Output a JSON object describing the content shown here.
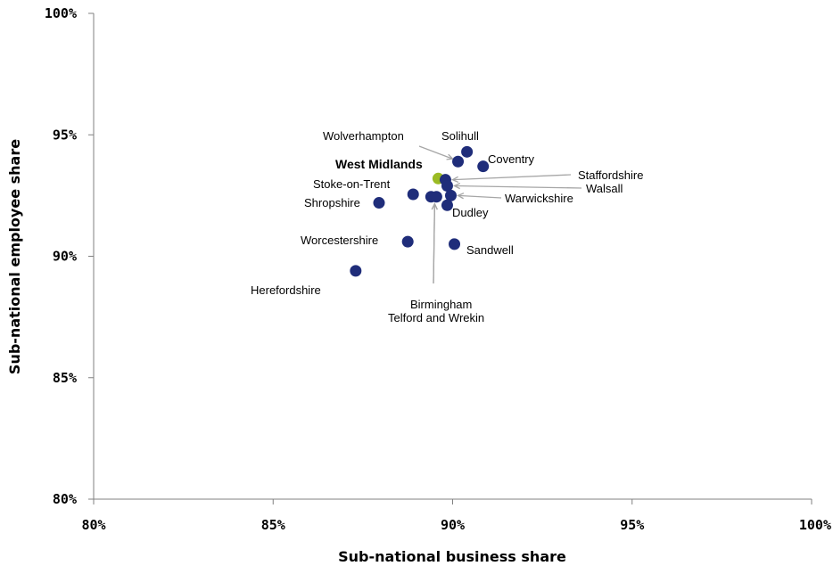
{
  "chart_data": {
    "type": "scatter",
    "title": "",
    "xlabel": "Sub-national business share",
    "ylabel": "Sub-national employee share",
    "xlim": [
      80,
      100
    ],
    "ylim": [
      80,
      100
    ],
    "x_ticks": [
      "80%",
      "85%",
      "90%",
      "95%",
      "100%"
    ],
    "y_ticks": [
      "80%",
      "85%",
      "90%",
      "95%",
      "100%"
    ],
    "grid": false,
    "colors": {
      "points": "#1f2d7a",
      "highlight": "#9bbb24",
      "arrows": "#a6a6a6",
      "axis": "#808080"
    },
    "points": [
      {
        "label": "Solihull",
        "x": 90.4,
        "y": 94.3
      },
      {
        "label": "Wolverhampton",
        "x": 90.15,
        "y": 93.9
      },
      {
        "label": "Coventry",
        "x": 90.85,
        "y": 93.7
      },
      {
        "label": "West Midlands",
        "x": 89.6,
        "y": 93.2,
        "highlight": true
      },
      {
        "label": "Staffordshire",
        "x": 89.8,
        "y": 93.15
      },
      {
        "label": "Walsall",
        "x": 89.85,
        "y": 92.9
      },
      {
        "label": "Warwickshire",
        "x": 89.95,
        "y": 92.5
      },
      {
        "label": "Stoke-on-Trent",
        "x": 88.9,
        "y": 92.55
      },
      {
        "label": "Birmingham",
        "x": 89.4,
        "y": 92.45
      },
      {
        "label": "Telford and Wrekin",
        "x": 89.55,
        "y": 92.45
      },
      {
        "label": "Dudley",
        "x": 89.85,
        "y": 92.1
      },
      {
        "label": "Shropshire",
        "x": 87.95,
        "y": 92.2
      },
      {
        "label": "Worcestershire",
        "x": 88.75,
        "y": 90.6
      },
      {
        "label": "Sandwell",
        "x": 90.05,
        "y": 90.5
      },
      {
        "label": "Herefordshire",
        "x": 87.3,
        "y": 89.4
      }
    ],
    "labels": [
      {
        "text": "Wolverhampton",
        "bold": false
      },
      {
        "text": "Solihull",
        "bold": false
      },
      {
        "text": "Coventry",
        "bold": false
      },
      {
        "text": "West Midlands",
        "bold": true
      },
      {
        "text": "Staffordshire",
        "bold": false
      },
      {
        "text": "Walsall",
        "bold": false
      },
      {
        "text": "Stoke-on-Trent",
        "bold": false
      },
      {
        "text": "Warwickshire",
        "bold": false
      },
      {
        "text": "Shropshire",
        "bold": false
      },
      {
        "text": "Dudley",
        "bold": false
      },
      {
        "text": "Worcestershire",
        "bold": false
      },
      {
        "text": "Sandwell",
        "bold": false
      },
      {
        "text": "Herefordshire",
        "bold": false
      },
      {
        "text": "Birmingham",
        "bold": false
      },
      {
        "text": "Telford and Wrekin",
        "bold": false
      }
    ]
  }
}
